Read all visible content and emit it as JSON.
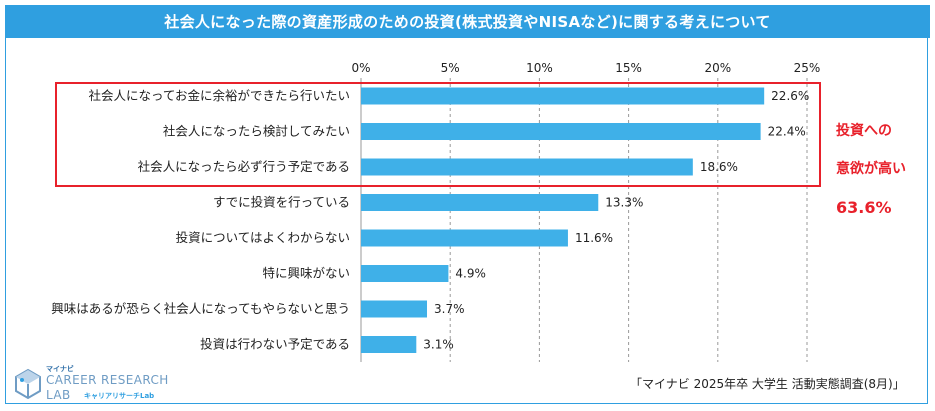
{
  "title": "社会人になった際の資産形成のための投資(株式投資やNISAなど)に関する考えについて",
  "callout": {
    "line1": "投資への",
    "line2": "意欲が高い",
    "value": "63.6%"
  },
  "source": "「マイナビ 2025年卒 大学生 活動実態調査(8月)」",
  "logo": {
    "small": "マイナビ",
    "main": "CAREER RESEARCH",
    "lab": "LAB",
    "sub": "キャリアリサーチLab"
  },
  "colors": {
    "bar": "#3fb0e8",
    "title_bg": "#2f9fe0",
    "highlight": "#e8212b",
    "grid": "#999999"
  },
  "chart_data": {
    "type": "bar",
    "orientation": "horizontal",
    "categories": [
      "社会人になってお金に余裕ができたら行いたい",
      "社会人になったら検討してみたい",
      "社会人になったら必ず行う予定である",
      "すでに投資を行っている",
      "投資についてはよくわからない",
      "特に興味がない",
      "興味はあるが恐らく社会人になってもやらないと思う",
      "投資は行わない予定である"
    ],
    "values": [
      22.6,
      22.4,
      18.6,
      13.3,
      11.6,
      4.9,
      3.7,
      3.1
    ],
    "value_labels": [
      "22.6%",
      "22.4%",
      "18.6%",
      "13.3%",
      "11.6%",
      "4.9%",
      "3.7%",
      "3.1%"
    ],
    "xlim": [
      0,
      25
    ],
    "ticks": [
      0,
      5,
      10,
      15,
      20,
      25
    ],
    "tick_labels": [
      "0%",
      "5%",
      "10%",
      "15%",
      "20%",
      "25%"
    ],
    "grid": true,
    "grid_style": "dashed-vertical"
  }
}
